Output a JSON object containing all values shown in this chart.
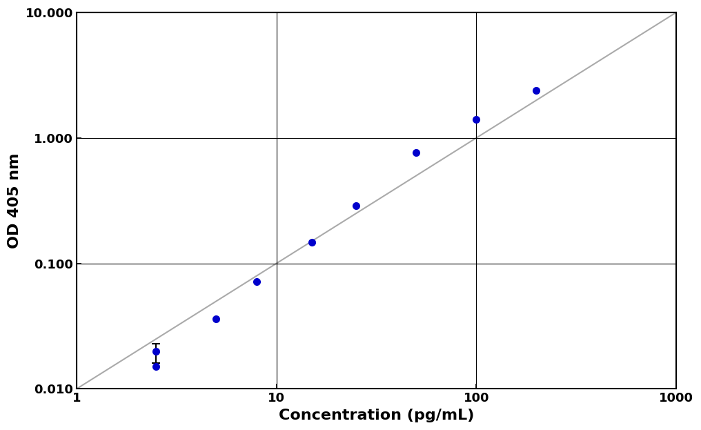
{
  "x_data": [
    2.5,
    2.5,
    5.0,
    8.0,
    15.0,
    25.0,
    50.0,
    100.0,
    200.0
  ],
  "y_data": [
    0.02,
    0.015,
    0.036,
    0.072,
    0.148,
    0.29,
    0.77,
    1.4,
    2.4
  ],
  "err_x": [
    2.5
  ],
  "err_y": [
    0.02
  ],
  "err_upper": [
    0.003
  ],
  "err_lower": [
    0.004
  ],
  "line_slope": 1.0,
  "line_intercept_log": -2.0,
  "point_color": "#0000CC",
  "line_color": "#aaaaaa",
  "xlabel": "Concentration (pg/mL)",
  "ylabel": "OD 405 nm",
  "xlim": [
    1,
    1000
  ],
  "ylim": [
    0.01,
    10.0
  ],
  "background_color": "#ffffff",
  "grid_color": "#000000",
  "axis_label_fontsize": 16,
  "tick_label_fontsize": 13,
  "marker_size": 7,
  "line_width": 1.5
}
